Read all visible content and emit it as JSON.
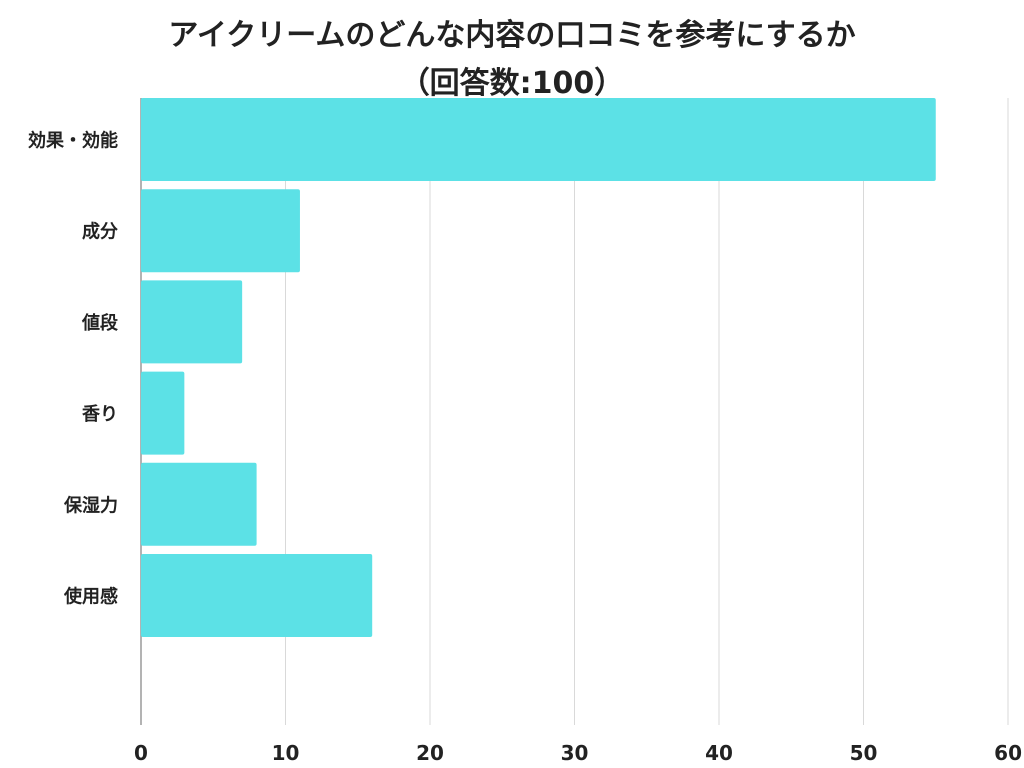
{
  "title_line1": "アイクリームのどんな内容の口コミを参考にするか",
  "title_line2": "（回答数:100）",
  "colors": {
    "bar": "#5ce1e6",
    "grid": "#d9d9d9",
    "axis": "#9a9a9a"
  },
  "chart_data": {
    "type": "bar",
    "orientation": "horizontal",
    "categories": [
      "効果・効能",
      "成分",
      "値段",
      "香り",
      "保湿力",
      "使用感"
    ],
    "values": [
      55,
      11,
      7,
      3,
      8,
      16
    ],
    "xlim": [
      0,
      60
    ],
    "xticks": [
      0,
      10,
      20,
      30,
      40,
      50,
      60
    ],
    "grid": true
  }
}
